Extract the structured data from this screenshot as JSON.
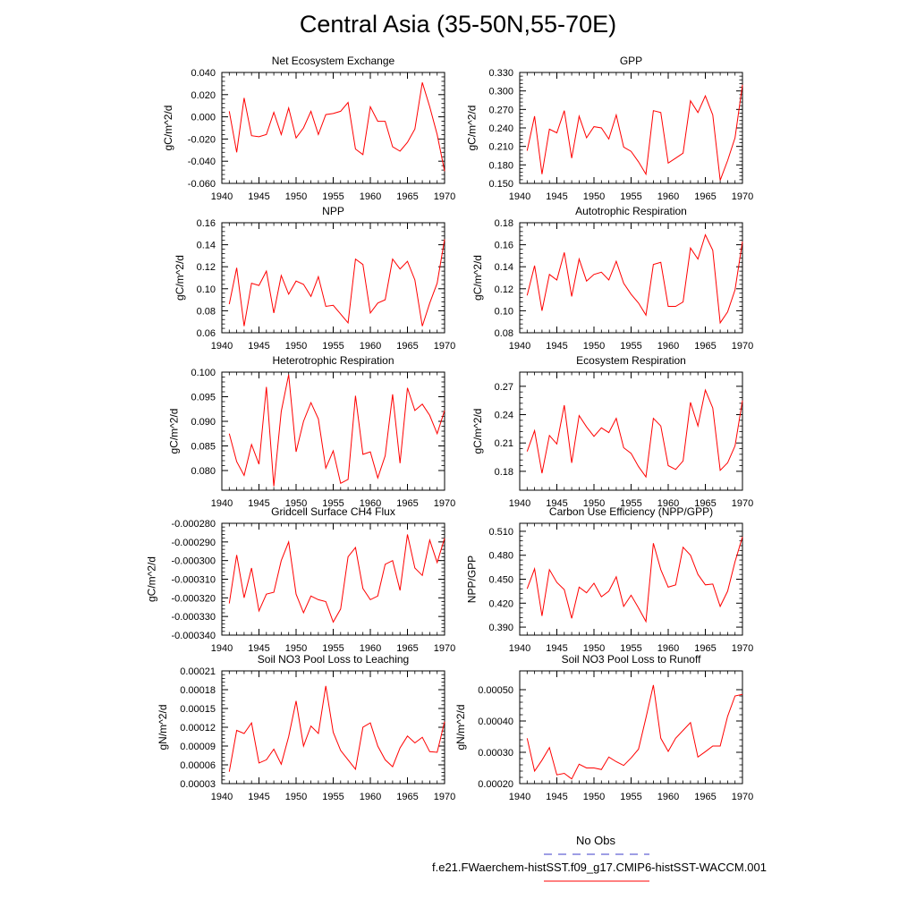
{
  "figure": {
    "title": "Central Asia (35-50N,55-70E)",
    "line_color": "#ff0000",
    "obs_color": "#3c3cc8"
  },
  "legend": {
    "obs_label": "No Obs",
    "model_label": "f.e21.FWaerchem-histSST.f09_g17.CMIP6-histSST-WACCM.001"
  },
  "chart_data": [
    {
      "type": "line",
      "title": "Net Ecosystem Exchange",
      "ylabel": "gC/m^2/d",
      "xlim": [
        1940,
        1970
      ],
      "xticks": [
        1940,
        1945,
        1950,
        1955,
        1960,
        1965,
        1970
      ],
      "xtick_labels": [
        "1940",
        "1945",
        "1950",
        "1955",
        "1960",
        "1965",
        "1970"
      ],
      "ylim": [
        -0.06,
        0.04
      ],
      "yticks": [
        -0.06,
        -0.04,
        -0.02,
        0.0,
        0.02,
        0.04
      ],
      "ytick_labels": [
        "-0.060",
        "-0.040",
        "-0.020",
        "0.000",
        "0.020",
        "0.040"
      ],
      "x": [
        1941,
        1942,
        1943,
        1944,
        1945,
        1946,
        1947,
        1948,
        1949,
        1950,
        1951,
        1952,
        1953,
        1954,
        1955,
        1956,
        1957,
        1958,
        1959,
        1960,
        1961,
        1962,
        1963,
        1964,
        1965,
        1966,
        1967,
        1968,
        1969,
        1970
      ],
      "values": [
        0.005,
        -0.032,
        0.017,
        -0.017,
        -0.018,
        -0.016,
        0.004,
        -0.016,
        0.008,
        -0.019,
        -0.01,
        0.005,
        -0.016,
        0.002,
        0.003,
        0.005,
        0.013,
        -0.029,
        -0.034,
        0.009,
        -0.004,
        -0.004,
        -0.027,
        -0.031,
        -0.023,
        -0.011,
        0.031,
        0.009,
        -0.016,
        -0.049
      ]
    },
    {
      "type": "line",
      "title": "GPP",
      "ylabel": "gC/m^2/d",
      "xlim": [
        1940,
        1970
      ],
      "xticks": [
        1940,
        1945,
        1950,
        1955,
        1960,
        1965,
        1970
      ],
      "xtick_labels": [
        "1940",
        "1945",
        "1950",
        "1955",
        "1960",
        "1965",
        "1970"
      ],
      "ylim": [
        0.15,
        0.33
      ],
      "yticks": [
        0.15,
        0.18,
        0.21,
        0.24,
        0.27,
        0.3,
        0.33
      ],
      "ytick_labels": [
        "0.150",
        "0.180",
        "0.210",
        "0.240",
        "0.270",
        "0.300",
        "0.330"
      ],
      "x": [
        1941,
        1942,
        1943,
        1944,
        1945,
        1946,
        1947,
        1948,
        1949,
        1950,
        1951,
        1952,
        1953,
        1954,
        1955,
        1956,
        1957,
        1958,
        1959,
        1960,
        1961,
        1962,
        1963,
        1964,
        1965,
        1966,
        1967,
        1968,
        1969,
        1970
      ],
      "values": [
        0.203,
        0.259,
        0.165,
        0.238,
        0.232,
        0.268,
        0.191,
        0.259,
        0.224,
        0.242,
        0.24,
        0.222,
        0.261,
        0.209,
        0.202,
        0.185,
        0.165,
        0.268,
        0.265,
        0.183,
        0.191,
        0.199,
        0.284,
        0.265,
        0.292,
        0.261,
        0.155,
        0.187,
        0.224,
        0.31
      ]
    },
    {
      "type": "line",
      "title": "NPP",
      "ylabel": "gC/m^2/d",
      "xlim": [
        1940,
        1970
      ],
      "xticks": [
        1940,
        1945,
        1950,
        1955,
        1960,
        1965,
        1970
      ],
      "xtick_labels": [
        "1940",
        "1945",
        "1950",
        "1955",
        "1960",
        "1965",
        "1970"
      ],
      "ylim": [
        0.06,
        0.16
      ],
      "yticks": [
        0.06,
        0.08,
        0.1,
        0.12,
        0.14,
        0.16
      ],
      "ytick_labels": [
        "0.06",
        "0.08",
        "0.10",
        "0.12",
        "0.14",
        "0.16"
      ],
      "x": [
        1941,
        1942,
        1943,
        1944,
        1945,
        1946,
        1947,
        1948,
        1949,
        1950,
        1951,
        1952,
        1953,
        1954,
        1955,
        1956,
        1957,
        1958,
        1959,
        1960,
        1961,
        1962,
        1963,
        1964,
        1965,
        1966,
        1967,
        1968,
        1969,
        1970
      ],
      "values": [
        0.086,
        0.119,
        0.066,
        0.105,
        0.103,
        0.116,
        0.078,
        0.112,
        0.095,
        0.107,
        0.104,
        0.093,
        0.111,
        0.084,
        0.085,
        0.077,
        0.069,
        0.127,
        0.122,
        0.078,
        0.087,
        0.09,
        0.127,
        0.118,
        0.125,
        0.108,
        0.066,
        0.087,
        0.105,
        0.145
      ]
    },
    {
      "type": "line",
      "title": "Autotrophic Respiration",
      "ylabel": "gC/m^2/d",
      "xlim": [
        1940,
        1970
      ],
      "xticks": [
        1940,
        1945,
        1950,
        1955,
        1960,
        1965,
        1970
      ],
      "xtick_labels": [
        "1940",
        "1945",
        "1950",
        "1955",
        "1960",
        "1965",
        "1970"
      ],
      "ylim": [
        0.08,
        0.18
      ],
      "yticks": [
        0.08,
        0.1,
        0.12,
        0.14,
        0.16,
        0.18
      ],
      "ytick_labels": [
        "0.08",
        "0.10",
        "0.12",
        "0.14",
        "0.16",
        "0.18"
      ],
      "x": [
        1941,
        1942,
        1943,
        1944,
        1945,
        1946,
        1947,
        1948,
        1949,
        1950,
        1951,
        1952,
        1953,
        1954,
        1955,
        1956,
        1957,
        1958,
        1959,
        1960,
        1961,
        1962,
        1963,
        1964,
        1965,
        1966,
        1967,
        1968,
        1969,
        1970
      ],
      "values": [
        0.114,
        0.141,
        0.1,
        0.133,
        0.128,
        0.153,
        0.113,
        0.147,
        0.127,
        0.133,
        0.135,
        0.128,
        0.145,
        0.125,
        0.115,
        0.107,
        0.096,
        0.142,
        0.144,
        0.104,
        0.104,
        0.108,
        0.157,
        0.147,
        0.169,
        0.155,
        0.089,
        0.099,
        0.119,
        0.163
      ]
    },
    {
      "type": "line",
      "title": "Heterotrophic Respiration",
      "ylabel": "gC/m^2/d",
      "xlim": [
        1940,
        1970
      ],
      "xticks": [
        1940,
        1945,
        1950,
        1955,
        1960,
        1965,
        1970
      ],
      "xtick_labels": [
        "1940",
        "1945",
        "1950",
        "1955",
        "1960",
        "1965",
        "1970"
      ],
      "ylim": [
        0.076,
        0.1
      ],
      "yticks": [
        0.08,
        0.085,
        0.09,
        0.095,
        0.1
      ],
      "ytick_labels": [
        "0.080",
        "0.085",
        "0.090",
        "0.095",
        "0.100"
      ],
      "x": [
        1941,
        1942,
        1943,
        1944,
        1945,
        1946,
        1947,
        1948,
        1949,
        1950,
        1951,
        1952,
        1953,
        1954,
        1955,
        1956,
        1957,
        1958,
        1959,
        1960,
        1961,
        1962,
        1963,
        1964,
        1965,
        1966,
        1967,
        1968,
        1969,
        1970
      ],
      "values": [
        0.0875,
        0.0818,
        0.079,
        0.0853,
        0.0813,
        0.097,
        0.0768,
        0.092,
        0.0995,
        0.0838,
        0.09,
        0.0938,
        0.0905,
        0.0805,
        0.084,
        0.0774,
        0.0782,
        0.0952,
        0.0833,
        0.0838,
        0.0785,
        0.083,
        0.0955,
        0.0815,
        0.0968,
        0.0922,
        0.0935,
        0.0912,
        0.0875,
        0.0922
      ]
    },
    {
      "type": "line",
      "title": "Ecosystem Respiration",
      "ylabel": "gC/m^2/d",
      "xlim": [
        1940,
        1970
      ],
      "xticks": [
        1940,
        1945,
        1950,
        1955,
        1960,
        1965,
        1970
      ],
      "xtick_labels": [
        "1940",
        "1945",
        "1950",
        "1955",
        "1960",
        "1965",
        "1970"
      ],
      "ylim": [
        0.16,
        0.285
      ],
      "yticks": [
        0.18,
        0.21,
        0.24,
        0.27
      ],
      "ytick_labels": [
        "0.18",
        "0.21",
        "0.24",
        "0.27"
      ],
      "x": [
        1941,
        1942,
        1943,
        1944,
        1945,
        1946,
        1947,
        1948,
        1949,
        1950,
        1951,
        1952,
        1953,
        1954,
        1955,
        1956,
        1957,
        1958,
        1959,
        1960,
        1961,
        1962,
        1963,
        1964,
        1965,
        1966,
        1967,
        1968,
        1969,
        1970
      ],
      "values": [
        0.201,
        0.223,
        0.178,
        0.218,
        0.209,
        0.25,
        0.189,
        0.239,
        0.227,
        0.217,
        0.226,
        0.221,
        0.236,
        0.205,
        0.199,
        0.185,
        0.174,
        0.236,
        0.228,
        0.186,
        0.182,
        0.191,
        0.253,
        0.228,
        0.266,
        0.247,
        0.181,
        0.189,
        0.207,
        0.255
      ]
    },
    {
      "type": "line",
      "title": "Gridcell Surface CH4 Flux",
      "ylabel": "gC/m^2/d",
      "xlim": [
        1940,
        1970
      ],
      "xticks": [
        1940,
        1945,
        1950,
        1955,
        1960,
        1965,
        1970
      ],
      "xtick_labels": [
        "1940",
        "1945",
        "1950",
        "1955",
        "1960",
        "1965",
        "1970"
      ],
      "ylim": [
        -0.00034,
        -0.00028
      ],
      "yticks": [
        -0.00034,
        -0.00033,
        -0.00032,
        -0.00031,
        -0.0003,
        -0.00029,
        -0.00028
      ],
      "ytick_labels": [
        "-0.000340",
        "-0.000330",
        "-0.000320",
        "-0.000310",
        "-0.000300",
        "-0.000290",
        "-0.000280"
      ],
      "x": [
        1941,
        1942,
        1943,
        1944,
        1945,
        1946,
        1947,
        1948,
        1949,
        1950,
        1951,
        1952,
        1953,
        1954,
        1955,
        1956,
        1957,
        1958,
        1959,
        1960,
        1961,
        1962,
        1963,
        1964,
        1965,
        1966,
        1967,
        1968,
        1969,
        1970
      ],
      "values": [
        -0.000323,
        -0.000297,
        -0.00032,
        -0.000304,
        -0.000327,
        -0.000318,
        -0.000317,
        -0.0003,
        -0.00029,
        -0.000318,
        -0.000328,
        -0.000319,
        -0.000321,
        -0.000322,
        -0.000333,
        -0.000326,
        -0.000298,
        -0.000293,
        -0.000315,
        -0.000321,
        -0.000319,
        -0.000302,
        -0.0003,
        -0.000316,
        -0.000286,
        -0.000304,
        -0.000308,
        -0.000289,
        -0.000301,
        -0.000288
      ]
    },
    {
      "type": "line",
      "title": "Carbon Use Efficiency (NPP/GPP)",
      "ylabel": "NPP/GPP",
      "xlim": [
        1940,
        1970
      ],
      "xticks": [
        1940,
        1945,
        1950,
        1955,
        1960,
        1965,
        1970
      ],
      "xtick_labels": [
        "1940",
        "1945",
        "1950",
        "1955",
        "1960",
        "1965",
        "1970"
      ],
      "ylim": [
        0.38,
        0.52
      ],
      "yticks": [
        0.39,
        0.42,
        0.45,
        0.48,
        0.51
      ],
      "ytick_labels": [
        "0.390",
        "0.420",
        "0.450",
        "0.480",
        "0.510"
      ],
      "x": [
        1941,
        1942,
        1943,
        1944,
        1945,
        1946,
        1947,
        1948,
        1949,
        1950,
        1951,
        1952,
        1953,
        1954,
        1955,
        1956,
        1957,
        1958,
        1959,
        1960,
        1961,
        1962,
        1963,
        1964,
        1965,
        1966,
        1967,
        1968,
        1969,
        1970
      ],
      "values": [
        0.438,
        0.463,
        0.404,
        0.462,
        0.446,
        0.437,
        0.401,
        0.44,
        0.433,
        0.445,
        0.428,
        0.435,
        0.453,
        0.416,
        0.43,
        0.414,
        0.397,
        0.495,
        0.462,
        0.44,
        0.443,
        0.49,
        0.48,
        0.456,
        0.443,
        0.444,
        0.416,
        0.435,
        0.472,
        0.503
      ]
    },
    {
      "type": "line",
      "title": "Soil NO3 Pool Loss to Leaching",
      "ylabel": "gN/m^2/d",
      "xlim": [
        1940,
        1970
      ],
      "xticks": [
        1940,
        1945,
        1950,
        1955,
        1960,
        1965,
        1970
      ],
      "xtick_labels": [
        "1940",
        "1945",
        "1950",
        "1955",
        "1960",
        "1965",
        "1970"
      ],
      "ylim": [
        3e-05,
        0.00021
      ],
      "yticks": [
        3e-05,
        6e-05,
        9e-05,
        0.00012,
        0.00015,
        0.00018,
        0.00021
      ],
      "ytick_labels": [
        "0.00003",
        "0.00006",
        "0.00009",
        "0.00012",
        "0.00015",
        "0.00018",
        "0.00021"
      ],
      "x": [
        1941,
        1942,
        1943,
        1944,
        1945,
        1946,
        1947,
        1948,
        1949,
        1950,
        1951,
        1952,
        1953,
        1954,
        1955,
        1956,
        1957,
        1958,
        1959,
        1960,
        1961,
        1962,
        1963,
        1964,
        1965,
        1966,
        1967,
        1968,
        1969,
        1970
      ],
      "values": [
        4.9e-05,
        0.000115,
        0.00011,
        0.000127,
        6.3e-05,
        6.8e-05,
        8.5e-05,
        6.1e-05,
        0.000105,
        0.000162,
        9e-05,
        0.000122,
        0.00011,
        0.000186,
        0.000112,
        8.3e-05,
        6.8e-05,
        5.3e-05,
        0.00012,
        0.000127,
        9e-05,
        6.8e-05,
        5.7e-05,
        8.7e-05,
        0.000106,
        9.5e-05,
        0.000104,
        8.1e-05,
        8e-05,
        0.000129
      ]
    },
    {
      "type": "line",
      "title": "Soil NO3 Pool Loss to Runoff",
      "ylabel": "gN/m^2/d",
      "xlim": [
        1940,
        1970
      ],
      "xticks": [
        1940,
        1945,
        1950,
        1955,
        1960,
        1965,
        1970
      ],
      "xtick_labels": [
        "1940",
        "1945",
        "1950",
        "1955",
        "1960",
        "1965",
        "1970"
      ],
      "ylim": [
        0.0002,
        0.00056
      ],
      "yticks": [
        0.0002,
        0.0003,
        0.0004,
        0.0005
      ],
      "ytick_labels": [
        "0.00020",
        "0.00030",
        "0.00040",
        "0.00050"
      ],
      "x": [
        1941,
        1942,
        1943,
        1944,
        1945,
        1946,
        1947,
        1948,
        1949,
        1950,
        1951,
        1952,
        1953,
        1954,
        1955,
        1956,
        1957,
        1958,
        1959,
        1960,
        1961,
        1962,
        1963,
        1964,
        1965,
        1966,
        1967,
        1968,
        1969,
        1970
      ],
      "values": [
        0.000345,
        0.00024,
        0.000275,
        0.000315,
        0.000228,
        0.000233,
        0.000215,
        0.000262,
        0.00025,
        0.00025,
        0.000245,
        0.000285,
        0.00027,
        0.000258,
        0.000282,
        0.00031,
        0.00041,
        0.000515,
        0.000345,
        0.000303,
        0.000345,
        0.00037,
        0.000395,
        0.000285,
        0.000302,
        0.00032,
        0.00032,
        0.000415,
        0.00048,
        0.000485
      ]
    }
  ]
}
